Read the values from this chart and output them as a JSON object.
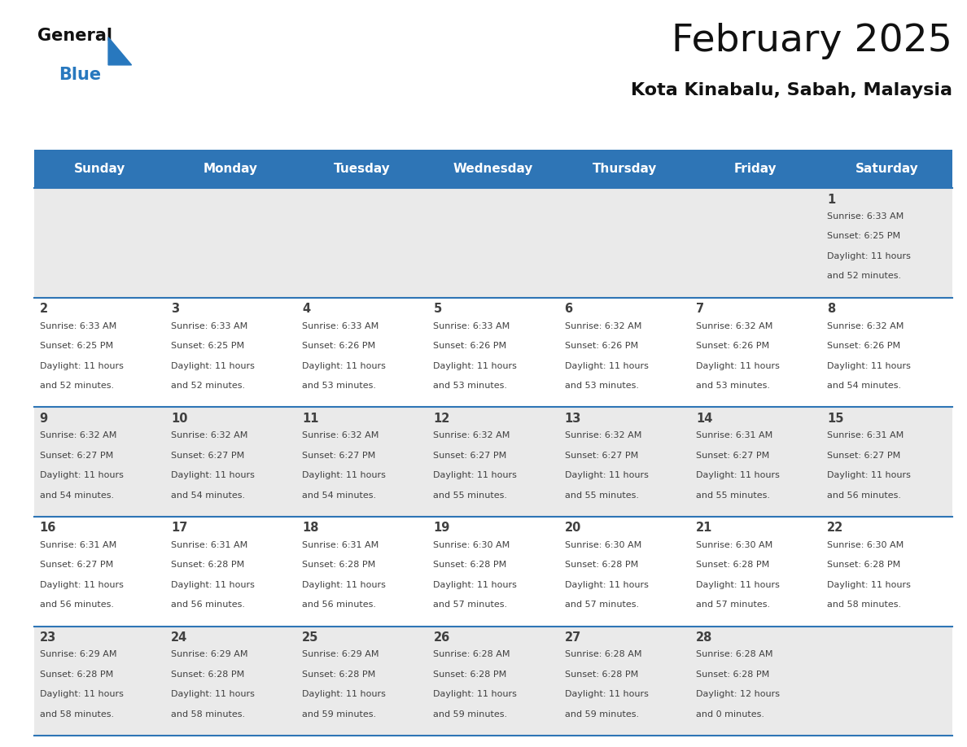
{
  "title": "February 2025",
  "subtitle": "Kota Kinabalu, Sabah, Malaysia",
  "weekdays": [
    "Sunday",
    "Monday",
    "Tuesday",
    "Wednesday",
    "Thursday",
    "Friday",
    "Saturday"
  ],
  "header_bg": "#2E75B6",
  "header_text_color": "#FFFFFF",
  "cell_bg_even": "#EAEAEA",
  "cell_bg_odd": "#FFFFFF",
  "row_line_color": "#2E75B6",
  "text_color": "#404040",
  "logo_blue_color": "#2878BE",
  "calendar_data": [
    [
      null,
      null,
      null,
      null,
      null,
      null,
      1
    ],
    [
      2,
      3,
      4,
      5,
      6,
      7,
      8
    ],
    [
      9,
      10,
      11,
      12,
      13,
      14,
      15
    ],
    [
      16,
      17,
      18,
      19,
      20,
      21,
      22
    ],
    [
      23,
      24,
      25,
      26,
      27,
      28,
      null
    ]
  ],
  "day_info": {
    "1": {
      "sunrise": "6:33 AM",
      "sunset": "6:25 PM",
      "daylight_hours": 11,
      "daylight_minutes": 52
    },
    "2": {
      "sunrise": "6:33 AM",
      "sunset": "6:25 PM",
      "daylight_hours": 11,
      "daylight_minutes": 52
    },
    "3": {
      "sunrise": "6:33 AM",
      "sunset": "6:25 PM",
      "daylight_hours": 11,
      "daylight_minutes": 52
    },
    "4": {
      "sunrise": "6:33 AM",
      "sunset": "6:26 PM",
      "daylight_hours": 11,
      "daylight_minutes": 53
    },
    "5": {
      "sunrise": "6:33 AM",
      "sunset": "6:26 PM",
      "daylight_hours": 11,
      "daylight_minutes": 53
    },
    "6": {
      "sunrise": "6:32 AM",
      "sunset": "6:26 PM",
      "daylight_hours": 11,
      "daylight_minutes": 53
    },
    "7": {
      "sunrise": "6:32 AM",
      "sunset": "6:26 PM",
      "daylight_hours": 11,
      "daylight_minutes": 53
    },
    "8": {
      "sunrise": "6:32 AM",
      "sunset": "6:26 PM",
      "daylight_hours": 11,
      "daylight_minutes": 54
    },
    "9": {
      "sunrise": "6:32 AM",
      "sunset": "6:27 PM",
      "daylight_hours": 11,
      "daylight_minutes": 54
    },
    "10": {
      "sunrise": "6:32 AM",
      "sunset": "6:27 PM",
      "daylight_hours": 11,
      "daylight_minutes": 54
    },
    "11": {
      "sunrise": "6:32 AM",
      "sunset": "6:27 PM",
      "daylight_hours": 11,
      "daylight_minutes": 54
    },
    "12": {
      "sunrise": "6:32 AM",
      "sunset": "6:27 PM",
      "daylight_hours": 11,
      "daylight_minutes": 55
    },
    "13": {
      "sunrise": "6:32 AM",
      "sunset": "6:27 PM",
      "daylight_hours": 11,
      "daylight_minutes": 55
    },
    "14": {
      "sunrise": "6:31 AM",
      "sunset": "6:27 PM",
      "daylight_hours": 11,
      "daylight_minutes": 55
    },
    "15": {
      "sunrise": "6:31 AM",
      "sunset": "6:27 PM",
      "daylight_hours": 11,
      "daylight_minutes": 56
    },
    "16": {
      "sunrise": "6:31 AM",
      "sunset": "6:27 PM",
      "daylight_hours": 11,
      "daylight_minutes": 56
    },
    "17": {
      "sunrise": "6:31 AM",
      "sunset": "6:28 PM",
      "daylight_hours": 11,
      "daylight_minutes": 56
    },
    "18": {
      "sunrise": "6:31 AM",
      "sunset": "6:28 PM",
      "daylight_hours": 11,
      "daylight_minutes": 56
    },
    "19": {
      "sunrise": "6:30 AM",
      "sunset": "6:28 PM",
      "daylight_hours": 11,
      "daylight_minutes": 57
    },
    "20": {
      "sunrise": "6:30 AM",
      "sunset": "6:28 PM",
      "daylight_hours": 11,
      "daylight_minutes": 57
    },
    "21": {
      "sunrise": "6:30 AM",
      "sunset": "6:28 PM",
      "daylight_hours": 11,
      "daylight_minutes": 57
    },
    "22": {
      "sunrise": "6:30 AM",
      "sunset": "6:28 PM",
      "daylight_hours": 11,
      "daylight_minutes": 58
    },
    "23": {
      "sunrise": "6:29 AM",
      "sunset": "6:28 PM",
      "daylight_hours": 11,
      "daylight_minutes": 58
    },
    "24": {
      "sunrise": "6:29 AM",
      "sunset": "6:28 PM",
      "daylight_hours": 11,
      "daylight_minutes": 58
    },
    "25": {
      "sunrise": "6:29 AM",
      "sunset": "6:28 PM",
      "daylight_hours": 11,
      "daylight_minutes": 59
    },
    "26": {
      "sunrise": "6:28 AM",
      "sunset": "6:28 PM",
      "daylight_hours": 11,
      "daylight_minutes": 59
    },
    "27": {
      "sunrise": "6:28 AM",
      "sunset": "6:28 PM",
      "daylight_hours": 11,
      "daylight_minutes": 59
    },
    "28": {
      "sunrise": "6:28 AM",
      "sunset": "6:28 PM",
      "daylight_hours": 12,
      "daylight_minutes": 0
    }
  },
  "figsize": [
    11.88,
    9.18
  ],
  "dpi": 100
}
